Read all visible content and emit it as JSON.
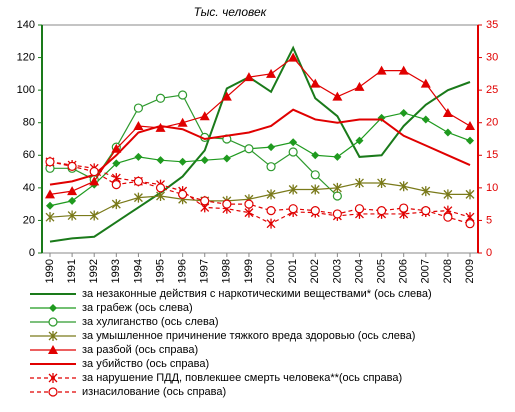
{
  "chart_data": {
    "type": "line",
    "title": "Тыс. человек",
    "categories": [
      "1990",
      "1991",
      "1992",
      "1993",
      "1994",
      "1995",
      "1996",
      "1997",
      "1998",
      "1999",
      "2000",
      "2001",
      "2002",
      "2003",
      "2004",
      "2005",
      "2006",
      "2007",
      "2008",
      "2009"
    ],
    "ylim": [
      0,
      140
    ],
    "yticks": [
      0,
      20,
      40,
      60,
      80,
      100,
      120,
      140
    ],
    "y2lim": [
      0,
      35
    ],
    "y2ticks": [
      0,
      5,
      10,
      15,
      20,
      25,
      30,
      35
    ],
    "series": [
      {
        "name": "за незаконные действия с наркотическими веществами* (ось слева)",
        "color": "#1a7a1a",
        "marker": "none",
        "dashed": false,
        "axis": "y",
        "values": [
          7,
          9,
          10,
          19,
          28,
          37,
          47,
          63,
          101,
          108,
          99,
          126,
          95,
          84,
          59,
          60,
          78,
          91,
          100,
          105
        ]
      },
      {
        "name": "за грабеж (ось слева)",
        "color": "#1f9a1f",
        "marker": "diamond",
        "dashed": false,
        "axis": "y",
        "values": [
          29,
          32,
          42,
          55,
          59,
          57,
          56,
          57,
          58,
          64,
          65,
          68,
          60,
          59,
          69,
          83,
          86,
          82,
          74,
          69
        ]
      },
      {
        "name": "за хулиганство (ось слева)",
        "color": "#2e9a2e",
        "marker": "circle",
        "dashed": false,
        "axis": "y",
        "values": [
          52,
          52,
          45,
          65,
          89,
          95,
          97,
          71,
          70,
          64,
          53,
          62,
          48,
          35,
          null,
          null,
          null,
          null,
          null,
          null
        ]
      },
      {
        "name": "за умышленное причинение тяжкого вреда здоровью (ось слева)",
        "color": "#7a7a1a",
        "marker": "star",
        "dashed": false,
        "axis": "y",
        "values": [
          22,
          23,
          23,
          30,
          34,
          35,
          33,
          32,
          32,
          33,
          36,
          39,
          39,
          40,
          43,
          43,
          41,
          38,
          36,
          36
        ]
      },
      {
        "name": "за разбой (ось справа)",
        "color": "#e00000",
        "marker": "triangle",
        "dashed": false,
        "axis": "y2",
        "values": [
          9,
          9.5,
          11,
          16,
          19.5,
          19.2,
          20,
          21,
          24,
          27,
          27.5,
          30,
          26,
          24,
          25.5,
          28,
          28,
          26,
          21.5,
          19.5
        ]
      },
      {
        "name": "за убийство (ось справа)",
        "color": "#e00000",
        "marker": "none",
        "dashed": false,
        "axis": "y2",
        "values": [
          10.5,
          11,
          12,
          15,
          18.5,
          19.5,
          19,
          17.5,
          18,
          18.5,
          19.5,
          22,
          20.5,
          20,
          20.5,
          20.5,
          18,
          16.5,
          15,
          13.5
        ]
      },
      {
        "name": "за нарушение ПДД, повлекшее смерть человека**(ось справа)",
        "color": "#e00000",
        "marker": "star",
        "dashed": true,
        "axis": "y2",
        "values": [
          14,
          13.5,
          13,
          11.5,
          11,
          10.5,
          9.5,
          7,
          6.8,
          6.2,
          4.5,
          6.3,
          6.2,
          5.7,
          6,
          6,
          6,
          6.3,
          6.5,
          5.5
        ]
      },
      {
        "name": "изнасилование (ось справа)",
        "color": "#e00000",
        "marker": "circle",
        "dashed": true,
        "axis": "y2",
        "values": [
          14,
          13.3,
          12.5,
          10.5,
          11,
          10,
          9,
          8,
          7.5,
          7.5,
          6.5,
          6.8,
          6.5,
          6,
          6.8,
          6.5,
          6.9,
          6.5,
          5.5,
          4.5
        ]
      }
    ]
  }
}
